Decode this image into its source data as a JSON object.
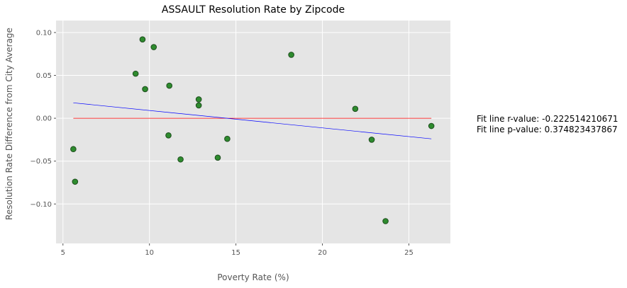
{
  "chart_data": {
    "type": "scatter",
    "title": "ASSAULT Resolution Rate by Zipcode",
    "xlabel": "Poverty Rate (%)",
    "ylabel": "Resolution Rate Difference from City Average",
    "xlim": [
      4.6,
      27.4
    ],
    "ylim": [
      -0.146,
      0.114
    ],
    "xticks": [
      5,
      10,
      15,
      20,
      25
    ],
    "yticks": [
      -0.1,
      -0.05,
      0.0,
      0.05,
      0.1
    ],
    "xtick_labels": [
      "5",
      "10",
      "15",
      "20",
      "25"
    ],
    "ytick_labels": [
      "−0.10",
      "−0.05",
      "0.00",
      "0.05",
      "0.10"
    ],
    "grid": true,
    "points": [
      {
        "x": 5.6,
        "y": -0.036
      },
      {
        "x": 5.7,
        "y": -0.074
      },
      {
        "x": 9.2,
        "y": 0.052
      },
      {
        "x": 9.6,
        "y": 0.092
      },
      {
        "x": 9.75,
        "y": 0.034
      },
      {
        "x": 10.25,
        "y": 0.083
      },
      {
        "x": 11.1,
        "y": -0.02
      },
      {
        "x": 11.15,
        "y": 0.038
      },
      {
        "x": 11.8,
        "y": -0.048
      },
      {
        "x": 12.85,
        "y": 0.022
      },
      {
        "x": 12.85,
        "y": 0.015
      },
      {
        "x": 13.95,
        "y": -0.046
      },
      {
        "x": 14.5,
        "y": -0.024
      },
      {
        "x": 18.2,
        "y": 0.074
      },
      {
        "x": 21.9,
        "y": 0.011
      },
      {
        "x": 22.85,
        "y": -0.025
      },
      {
        "x": 23.65,
        "y": -0.12
      },
      {
        "x": 26.3,
        "y": -0.009
      }
    ],
    "fit_line": {
      "x": [
        5.6,
        26.3
      ],
      "y": [
        0.018,
        -0.024
      ]
    },
    "zero_line": {
      "x": [
        5.6,
        26.3
      ],
      "y": [
        0.0,
        0.0
      ]
    },
    "colors": {
      "points": "#2e8b2e",
      "point_edge": "#1e4d1e",
      "fit": "#0000ff",
      "zero": "#ff0000",
      "background": "#e5e5e5",
      "grid": "#ffffff"
    }
  },
  "annotation": {
    "r_line": "Fit line r-value: -0.222514210671",
    "p_line": "Fit line p-value: 0.374823437867"
  }
}
